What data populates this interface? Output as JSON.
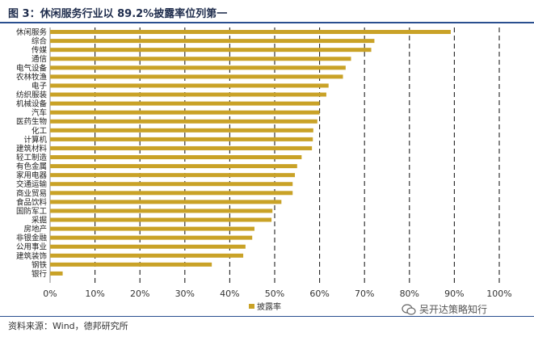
{
  "figure": {
    "title": "图 3：休闲服务行业以 89.2%披露率位列第一",
    "source": "资料来源：Wind，德邦研究所",
    "watermark": "吴开达策略知行"
  },
  "chart_data": {
    "type": "bar",
    "orientation": "horizontal",
    "categories": [
      "休闲服务",
      "综合",
      "传媒",
      "通信",
      "电气设备",
      "农林牧渔",
      "电子",
      "纺织服装",
      "机械设备",
      "汽车",
      "医药生物",
      "化工",
      "计算机",
      "建筑材料",
      "轻工制造",
      "有色金属",
      "家用电器",
      "交通运输",
      "商业贸易",
      "食品饮料",
      "国防军工",
      "采掘",
      "房地产",
      "非银金融",
      "公用事业",
      "建筑装饰",
      "钢铁",
      "银行"
    ],
    "series": [
      {
        "name": "披露率",
        "values": [
          89.2,
          72.2,
          71.5,
          67.0,
          65.8,
          65.2,
          62.0,
          61.5,
          60.0,
          60.0,
          59.5,
          58.6,
          58.5,
          58.3,
          56.0,
          55.0,
          54.5,
          54.0,
          54.0,
          51.5,
          49.5,
          49.3,
          45.5,
          45.0,
          43.5,
          43.0,
          36.0,
          2.8
        ]
      }
    ],
    "x_ticks": [
      "0%",
      "10%",
      "20%",
      "30%",
      "40%",
      "50%",
      "60%",
      "70%",
      "80%",
      "90%",
      "100%"
    ],
    "xlim": [
      0,
      100
    ],
    "grid": "vertical dashed",
    "legend": "bottom",
    "colors": {
      "bar": "#c9a227",
      "grid": "#222222",
      "axis": "#888888"
    }
  }
}
